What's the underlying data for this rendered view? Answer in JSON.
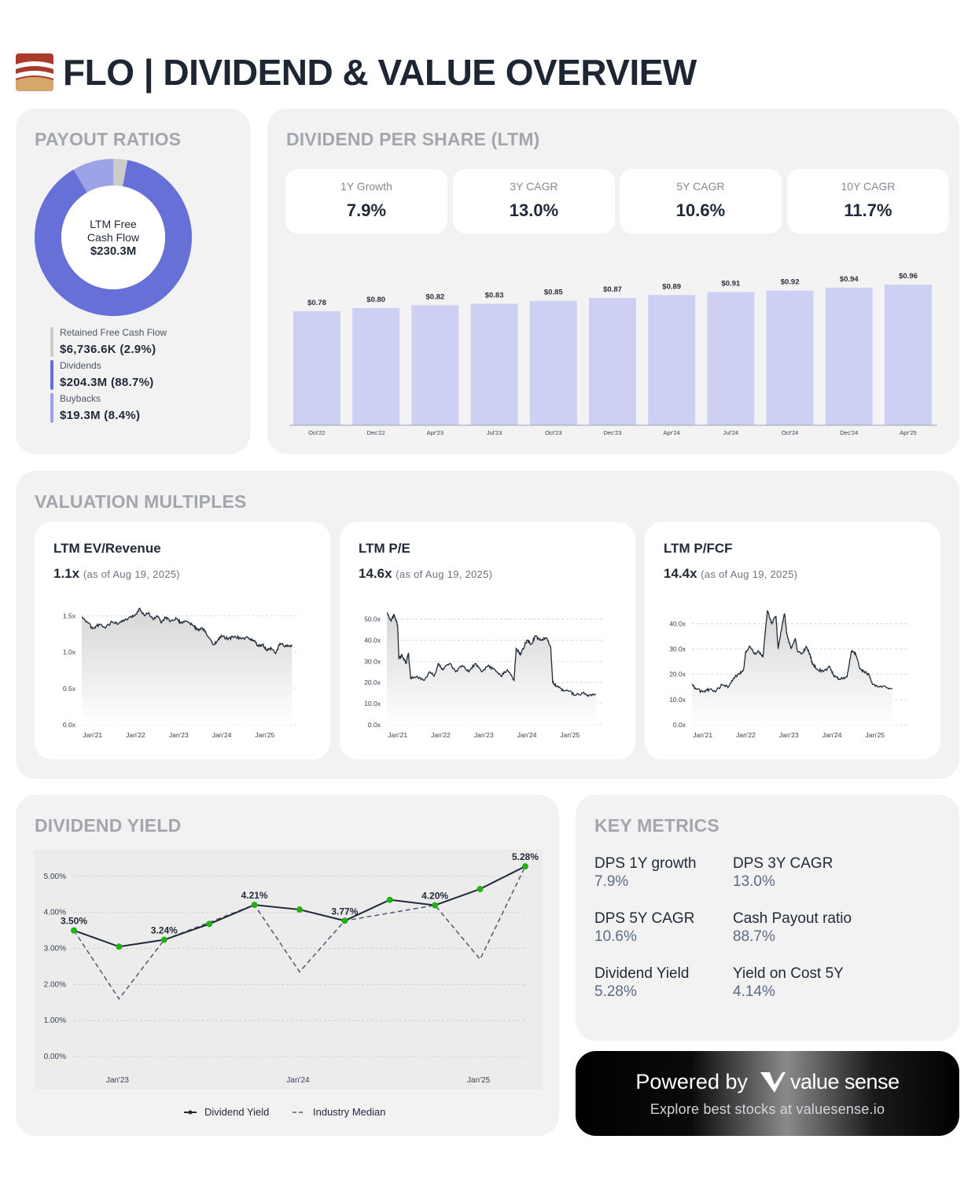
{
  "header": {
    "title": "FLO | DIVIDEND & VALUE OVERVIEW",
    "logo_icon": "flowers-foods-logo"
  },
  "payout": {
    "title": "PAYOUT RATIOS",
    "center_line1": "LTM Free",
    "center_line2": "Cash Flow",
    "center_value": "$230.3M",
    "items": [
      {
        "label": "Retained Free Cash Flow",
        "value": "$6,736.6K (2.9%)",
        "pct": 2.9,
        "color": "#cccccc"
      },
      {
        "label": "Dividends",
        "value": "$204.3M (88.7%)",
        "pct": 88.7,
        "color": "#6670d6"
      },
      {
        "label": "Buybacks",
        "value": "$19.3M (8.4%)",
        "pct": 8.4,
        "color": "#9da3e6"
      }
    ]
  },
  "dps": {
    "title": "DIVIDEND PER SHARE (LTM)",
    "stats": [
      {
        "label": "1Y Growth",
        "value": "7.9%"
      },
      {
        "label": "3Y CAGR",
        "value": "13.0%"
      },
      {
        "label": "5Y CAGR",
        "value": "10.6%"
      },
      {
        "label": "10Y CAGR",
        "value": "11.7%"
      }
    ]
  },
  "valuation": {
    "title": "VALUATION MULTIPLES",
    "cards": [
      {
        "title": "LTM EV/Revenue",
        "value": "1.1x",
        "asof": "(as of Aug 19, 2025)"
      },
      {
        "title": "LTM P/E",
        "value": "14.6x",
        "asof": "(as of Aug 19, 2025)"
      },
      {
        "title": "LTM P/FCF",
        "value": "14.4x",
        "asof": "(as of Aug 19, 2025)"
      }
    ]
  },
  "yield": {
    "title": "DIVIDEND YIELD"
  },
  "metrics": {
    "title": "KEY METRICS",
    "items": [
      {
        "label": "DPS 1Y growth",
        "value": "7.9%"
      },
      {
        "label": "DPS 3Y CAGR",
        "value": "13.0%"
      },
      {
        "label": "DPS 5Y CAGR",
        "value": "10.6%"
      },
      {
        "label": "Cash Payout ratio",
        "value": "88.7%"
      },
      {
        "label": "Dividend Yield",
        "value": "5.28%"
      },
      {
        "label": "Yield on Cost 5Y",
        "value": "4.14%"
      }
    ]
  },
  "powered": {
    "prefix": "Powered by",
    "brand": "value sense",
    "brand_icon": "valuesense-v-icon",
    "tagline": "Explore best stocks at valuesense.io"
  },
  "chart_data": [
    {
      "type": "bar",
      "categories": [
        "Oct'22",
        "Dec'22",
        "Apr'23",
        "Jul'23",
        "Oct'23",
        "Dec'23",
        "Apr'24",
        "Jul'24",
        "Oct'24",
        "Dec'24",
        "Apr'25"
      ],
      "values": [
        0.78,
        0.8,
        0.82,
        0.83,
        0.85,
        0.87,
        0.89,
        0.91,
        0.92,
        0.94,
        0.96
      ],
      "data_labels": [
        "$0.78",
        "$0.80",
        "$0.82",
        "$0.83",
        "$0.85",
        "$0.87",
        "$0.89",
        "$0.91",
        "$0.92",
        "$0.94",
        "$0.96"
      ],
      "ylim": [
        0,
        1.0
      ],
      "color": "#cdd0f3"
    },
    {
      "type": "area",
      "x_ticks": [
        "Jan'21",
        "Jan'22",
        "Jan'23",
        "Jan'24",
        "Jan'25"
      ],
      "y_ticks": [
        "0.0x",
        "0.5x",
        "1.0x",
        "1.5x"
      ],
      "ylim": [
        0,
        1.6
      ],
      "xlim": [
        2020.75,
        2025.75
      ],
      "points": [
        [
          2020.75,
          1.48
        ],
        [
          2020.9,
          1.4
        ],
        [
          2021.0,
          1.32
        ],
        [
          2021.15,
          1.38
        ],
        [
          2021.3,
          1.33
        ],
        [
          2021.45,
          1.42
        ],
        [
          2021.6,
          1.39
        ],
        [
          2021.75,
          1.44
        ],
        [
          2021.9,
          1.48
        ],
        [
          2022.0,
          1.52
        ],
        [
          2022.1,
          1.6
        ],
        [
          2022.2,
          1.5
        ],
        [
          2022.3,
          1.54
        ],
        [
          2022.4,
          1.45
        ],
        [
          2022.5,
          1.5
        ],
        [
          2022.6,
          1.4
        ],
        [
          2022.7,
          1.48
        ],
        [
          2022.8,
          1.42
        ],
        [
          2022.95,
          1.46
        ],
        [
          2023.05,
          1.4
        ],
        [
          2023.2,
          1.42
        ],
        [
          2023.35,
          1.36
        ],
        [
          2023.45,
          1.3
        ],
        [
          2023.55,
          1.33
        ],
        [
          2023.7,
          1.2
        ],
        [
          2023.8,
          1.1
        ],
        [
          2023.9,
          1.16
        ],
        [
          2024.0,
          1.22
        ],
        [
          2024.15,
          1.18
        ],
        [
          2024.3,
          1.22
        ],
        [
          2024.45,
          1.18
        ],
        [
          2024.6,
          1.2
        ],
        [
          2024.75,
          1.15
        ],
        [
          2024.85,
          1.08
        ],
        [
          2024.95,
          1.1
        ],
        [
          2025.05,
          1.02
        ],
        [
          2025.15,
          1.05
        ],
        [
          2025.25,
          0.98
        ],
        [
          2025.35,
          1.12
        ],
        [
          2025.5,
          1.08
        ],
        [
          2025.63,
          1.1
        ]
      ]
    },
    {
      "type": "area",
      "x_ticks": [
        "Jan'21",
        "Jan'22",
        "Jan'23",
        "Jan'24",
        "Jan'25"
      ],
      "y_ticks": [
        "0.0x",
        "10.0x",
        "20.0x",
        "30.0x",
        "40.0x",
        "50.0x"
      ],
      "ylim": [
        0,
        55
      ],
      "xlim": [
        2020.75,
        2025.75
      ],
      "points": [
        [
          2020.75,
          53
        ],
        [
          2020.85,
          49
        ],
        [
          2020.92,
          52
        ],
        [
          2021.0,
          47
        ],
        [
          2021.03,
          31
        ],
        [
          2021.1,
          33
        ],
        [
          2021.2,
          29
        ],
        [
          2021.25,
          34
        ],
        [
          2021.3,
          22
        ],
        [
          2021.45,
          23
        ],
        [
          2021.6,
          21
        ],
        [
          2021.75,
          25
        ],
        [
          2021.85,
          23
        ],
        [
          2021.95,
          29
        ],
        [
          2022.05,
          26
        ],
        [
          2022.2,
          29
        ],
        [
          2022.35,
          25
        ],
        [
          2022.5,
          28
        ],
        [
          2022.65,
          25
        ],
        [
          2022.8,
          29
        ],
        [
          2022.95,
          25
        ],
        [
          2023.1,
          28
        ],
        [
          2023.25,
          26
        ],
        [
          2023.4,
          23
        ],
        [
          2023.55,
          26
        ],
        [
          2023.7,
          21
        ],
        [
          2023.75,
          36
        ],
        [
          2023.85,
          33
        ],
        [
          2024.0,
          40
        ],
        [
          2024.1,
          38
        ],
        [
          2024.2,
          42
        ],
        [
          2024.3,
          40
        ],
        [
          2024.45,
          41
        ],
        [
          2024.55,
          37
        ],
        [
          2024.6,
          20
        ],
        [
          2024.7,
          18
        ],
        [
          2024.85,
          16
        ],
        [
          2025.0,
          16
        ],
        [
          2025.1,
          14
        ],
        [
          2025.3,
          15
        ],
        [
          2025.45,
          14
        ],
        [
          2025.6,
          14.6
        ]
      ]
    },
    {
      "type": "area",
      "x_ticks": [
        "Jan'21",
        "Jan'22",
        "Jan'23",
        "Jan'24",
        "Jan'25"
      ],
      "y_ticks": [
        "0.0x",
        "10.0x",
        "20.0x",
        "30.0x",
        "40.0x"
      ],
      "ylim": [
        0,
        46
      ],
      "xlim": [
        2020.75,
        2025.75
      ],
      "points": [
        [
          2020.75,
          16
        ],
        [
          2020.85,
          14
        ],
        [
          2021.0,
          13
        ],
        [
          2021.15,
          14
        ],
        [
          2021.3,
          13
        ],
        [
          2021.45,
          16
        ],
        [
          2021.6,
          15
        ],
        [
          2021.75,
          19
        ],
        [
          2021.85,
          20
        ],
        [
          2021.95,
          22
        ],
        [
          2022.0,
          29
        ],
        [
          2022.1,
          31
        ],
        [
          2022.2,
          28
        ],
        [
          2022.3,
          29
        ],
        [
          2022.4,
          27
        ],
        [
          2022.5,
          45
        ],
        [
          2022.6,
          40
        ],
        [
          2022.7,
          43
        ],
        [
          2022.75,
          30
        ],
        [
          2022.85,
          40
        ],
        [
          2022.9,
          44
        ],
        [
          2022.95,
          36
        ],
        [
          2023.05,
          30
        ],
        [
          2023.15,
          34
        ],
        [
          2023.2,
          29
        ],
        [
          2023.3,
          28
        ],
        [
          2023.4,
          31
        ],
        [
          2023.5,
          27
        ],
        [
          2023.55,
          24
        ],
        [
          2023.65,
          22
        ],
        [
          2023.8,
          21
        ],
        [
          2023.95,
          23
        ],
        [
          2024.05,
          19
        ],
        [
          2024.2,
          18
        ],
        [
          2024.35,
          19
        ],
        [
          2024.45,
          29
        ],
        [
          2024.55,
          28
        ],
        [
          2024.65,
          22
        ],
        [
          2024.75,
          21
        ],
        [
          2024.85,
          20
        ],
        [
          2024.95,
          16
        ],
        [
          2025.1,
          15
        ],
        [
          2025.25,
          15
        ],
        [
          2025.4,
          14.4
        ]
      ]
    },
    {
      "type": "line",
      "x_ticks": [
        "Jan'23",
        "Jan'24",
        "Jan'25"
      ],
      "y_ticks": [
        "0.00%",
        "1.00%",
        "2.00%",
        "3.00%",
        "4.00%",
        "5.00%"
      ],
      "ylim": [
        0,
        5.5
      ],
      "series": [
        {
          "name": "Dividend Yield",
          "color": "#1f2937",
          "marker_color": "#22b014",
          "values": [
            3.5,
            3.05,
            3.24,
            3.68,
            4.21,
            4.08,
            3.77,
            4.35,
            4.2,
            4.65,
            5.28
          ],
          "labels": [
            "3.50%",
            "",
            "3.24%",
            "",
            "4.21%",
            "",
            "3.77%",
            "",
            "4.20%",
            "",
            "5.28%"
          ]
        },
        {
          "name": "Industry Median",
          "color": "#4b5a73",
          "dashed": true,
          "values": [
            3.5,
            1.6,
            3.24,
            null,
            4.21,
            2.35,
            3.77,
            null,
            4.2,
            2.7,
            5.28
          ]
        }
      ]
    }
  ]
}
